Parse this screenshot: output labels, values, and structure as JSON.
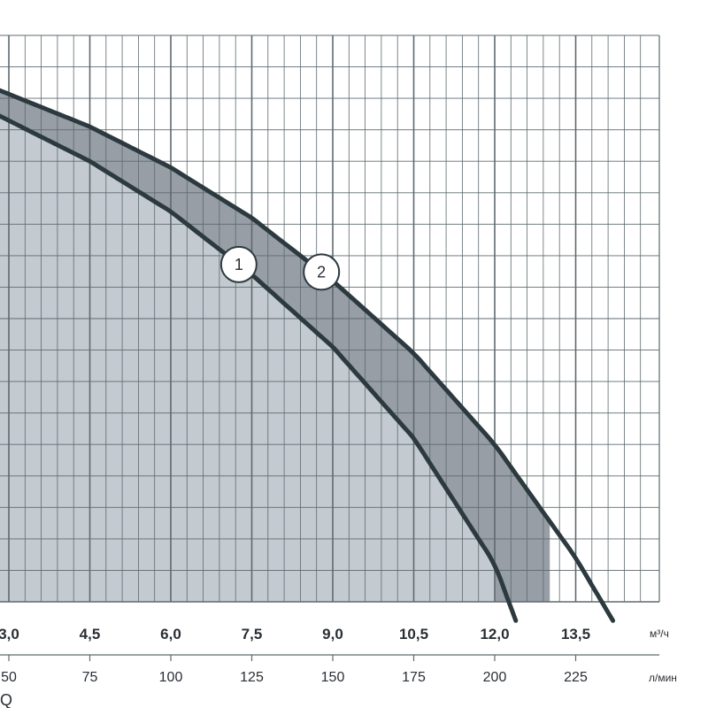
{
  "chart_data": {
    "type": "area",
    "x_axis_primary": {
      "unit": "м³/ч",
      "tick_labels": [
        "3,0",
        "4,5",
        "6,0",
        "7,5",
        "9,0",
        "10,5",
        "12,0",
        "13,5"
      ]
    },
    "x_axis_secondary": {
      "unit": "л/мин",
      "tick_labels": [
        "50",
        "75",
        "100",
        "125",
        "150",
        "175",
        "200",
        "225"
      ]
    },
    "xlabel": "Q",
    "xlim_lmin": [
      46,
      245
    ],
    "ylim_grid": [
      0,
      18
    ],
    "grid": true,
    "series": [
      {
        "name": "1",
        "x_lmin": [
          46,
          75,
          100,
          125,
          150,
          175,
          200,
          206.5
        ],
        "y_grid": [
          15.5,
          14.0,
          12.4,
          10.4,
          8.1,
          5.2,
          1.2,
          -0.6
        ],
        "operating_limit_lmin": 200,
        "label_at_lmin": 121,
        "color": "#2c3a3f"
      },
      {
        "name": "2",
        "x_lmin": [
          46,
          75,
          100,
          125,
          150,
          175,
          200,
          225,
          236.5
        ],
        "y_grid": [
          16.3,
          15.1,
          13.8,
          12.2,
          10.2,
          7.9,
          5.0,
          1.4,
          -0.6
        ],
        "operating_limit_lmin": 217,
        "label_at_lmin": 146.5,
        "color": "#2c3a3f"
      }
    ],
    "colors": {
      "background": "#ffffff",
      "grid_line": "#5e6a6f",
      "band_light": "#c4cbd0",
      "band_dark": "#979ea5",
      "curve": "#2c3a3f",
      "text": "#2a2e33"
    }
  }
}
